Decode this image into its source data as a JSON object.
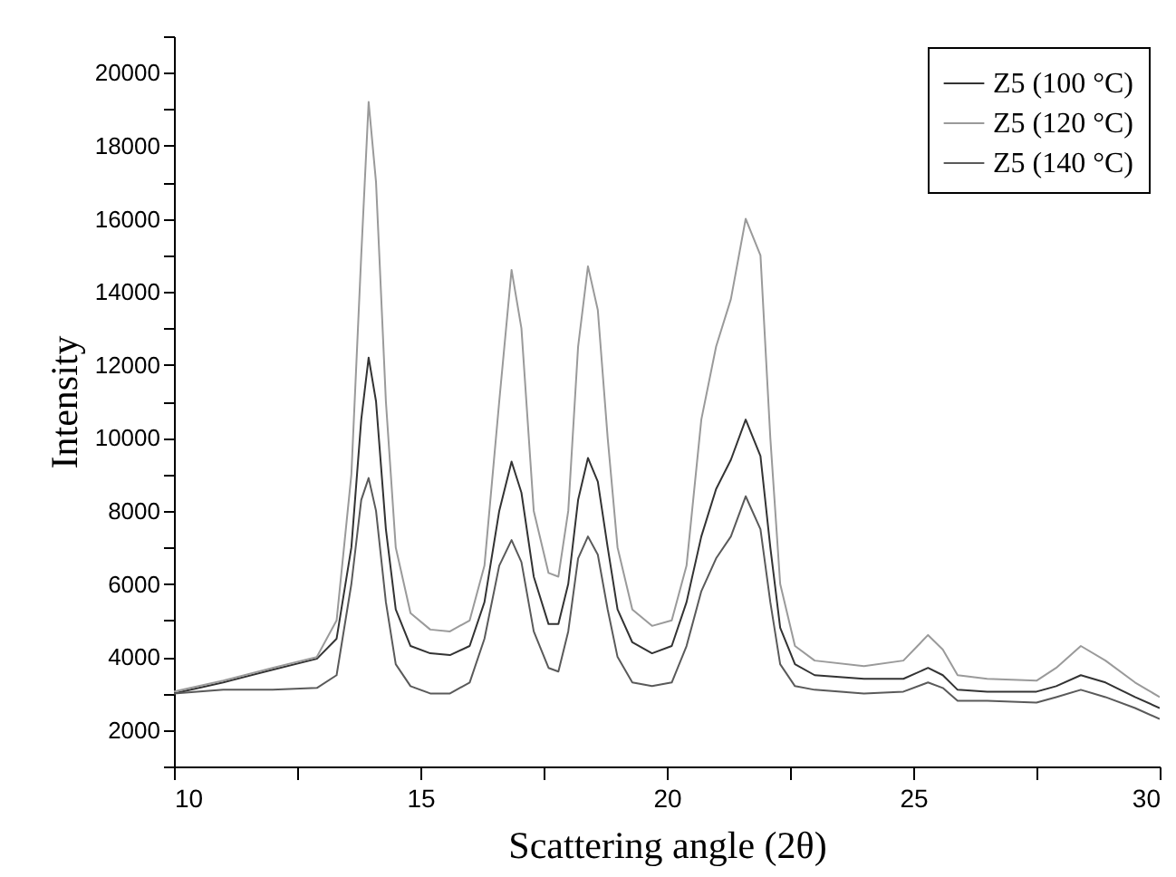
{
  "chart_data": {
    "type": "line",
    "xlabel": "Scattering  angle (2θ)",
    "ylabel": "Intensity",
    "x": [
      10,
      11,
      12,
      12.9,
      13.3,
      13.6,
      13.8,
      13.95,
      14.1,
      14.3,
      14.5,
      14.8,
      15.2,
      15.6,
      16.0,
      16.3,
      16.6,
      16.85,
      17.05,
      17.3,
      17.6,
      17.8,
      18.0,
      18.2,
      18.4,
      18.6,
      18.8,
      19.0,
      19.3,
      19.7,
      20.1,
      20.4,
      20.7,
      21.0,
      21.3,
      21.6,
      21.9,
      22.1,
      22.3,
      22.6,
      23.0,
      24,
      24.8,
      25.3,
      25.6,
      25.9,
      26.5,
      27.5,
      27.9,
      28.4,
      28.9,
      29.5,
      30
    ],
    "series": [
      {
        "name": "Z5 (100 °C)",
        "color": "#333333",
        "values": [
          3000,
          3300,
          3650,
          3950,
          4500,
          7000,
          10500,
          12200,
          11000,
          7500,
          5300,
          4300,
          4100,
          4050,
          4300,
          5500,
          8000,
          9350,
          8500,
          6200,
          4900,
          4900,
          6000,
          8300,
          9450,
          8800,
          7000,
          5300,
          4400,
          4100,
          4300,
          5500,
          7300,
          8600,
          9400,
          10500,
          9500,
          7000,
          4800,
          3800,
          3500,
          3400,
          3400,
          3700,
          3500,
          3100,
          3050,
          3050,
          3200,
          3500,
          3300,
          2900,
          2600
        ]
      },
      {
        "name": "Z5 (120 °C)",
        "color": "#9a9a9a",
        "values": [
          3050,
          3350,
          3700,
          4000,
          5000,
          9000,
          15000,
          19200,
          17000,
          11000,
          7000,
          5200,
          4750,
          4700,
          5000,
          6500,
          11000,
          14600,
          13000,
          8000,
          6300,
          6200,
          8000,
          12500,
          14700,
          13500,
          10000,
          7000,
          5300,
          4850,
          5000,
          6500,
          10500,
          12500,
          13800,
          16000,
          15000,
          10000,
          6000,
          4300,
          3900,
          3750,
          3900,
          4600,
          4200,
          3500,
          3400,
          3350,
          3700,
          4300,
          3900,
          3300,
          2900
        ]
      },
      {
        "name": "Z5 (140 °C)",
        "color": "#5a5a5a",
        "values": [
          3000,
          3100,
          3100,
          3150,
          3500,
          6000,
          8300,
          8900,
          8000,
          5500,
          3800,
          3200,
          3000,
          3000,
          3300,
          4500,
          6500,
          7200,
          6600,
          4700,
          3700,
          3600,
          4700,
          6700,
          7300,
          6800,
          5300,
          4000,
          3300,
          3200,
          3300,
          4300,
          5800,
          6700,
          7300,
          8400,
          7500,
          5500,
          3800,
          3200,
          3100,
          3000,
          3050,
          3300,
          3150,
          2800,
          2800,
          2750,
          2900,
          3100,
          2900,
          2600,
          2300
        ]
      }
    ],
    "xlim": [
      10,
      30
    ],
    "xticks": [
      10,
      {
        "value": 12.5,
        "label": null
      },
      15,
      {
        "value": 17.5,
        "label": null
      },
      20,
      {
        "value": 22.5,
        "label": null
      },
      25,
      {
        "value": 27.5,
        "label": null
      },
      30
    ],
    "ylim": [
      1000,
      21000
    ],
    "yticks": [
      {
        "value": 1000,
        "label": null
      },
      2000,
      {
        "value": 3000,
        "label": null
      },
      4000,
      {
        "value": 5000,
        "label": null
      },
      6000,
      {
        "value": 7000,
        "label": null
      },
      8000,
      {
        "value": 9000,
        "label": null
      },
      10000,
      {
        "value": 11000,
        "label": null
      },
      12000,
      {
        "value": 13000,
        "label": null
      },
      14000,
      {
        "value": 15000,
        "label": null
      },
      16000,
      {
        "value": 17000,
        "label": null
      },
      18000,
      {
        "value": 19000,
        "label": null
      },
      20000,
      {
        "value": 21000,
        "label": null
      }
    ],
    "legend": "top right",
    "grid": false,
    "marker": "none",
    "line_style": "solid"
  }
}
